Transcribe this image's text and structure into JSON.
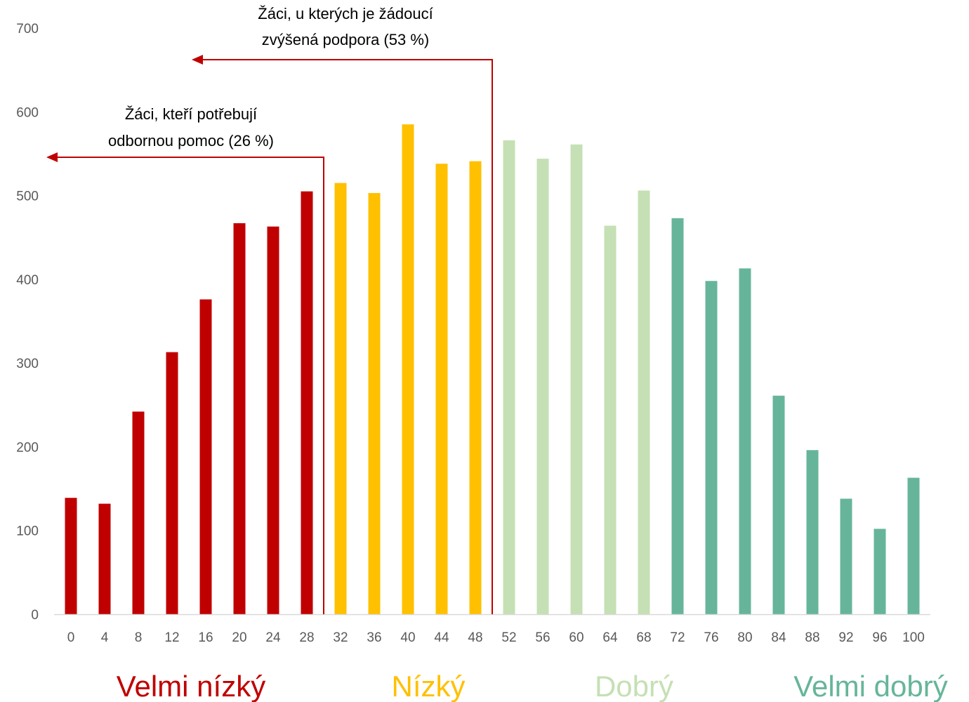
{
  "chart_data": {
    "type": "bar",
    "categories": [
      "0",
      "4",
      "8",
      "12",
      "16",
      "20",
      "24",
      "28",
      "32",
      "36",
      "40",
      "44",
      "48",
      "52",
      "56",
      "60",
      "64",
      "68",
      "72",
      "76",
      "80",
      "84",
      "88",
      "92",
      "96",
      "100"
    ],
    "values": [
      139,
      132,
      242,
      313,
      376,
      467,
      463,
      505,
      515,
      503,
      585,
      538,
      541,
      566,
      544,
      561,
      464,
      506,
      473,
      398,
      413,
      261,
      196,
      138,
      102,
      163
    ],
    "bar_groups": [
      0,
      0,
      0,
      0,
      0,
      0,
      0,
      0,
      1,
      1,
      1,
      1,
      1,
      2,
      2,
      2,
      2,
      2,
      3,
      3,
      3,
      3,
      3,
      3,
      3,
      3
    ],
    "ylim": [
      0,
      700
    ],
    "yticks": [
      "0",
      "100",
      "200",
      "300",
      "400",
      "500",
      "600",
      "700"
    ],
    "grid": false,
    "colors": {
      "velmi_nizky": "#C00000",
      "nizky": "#FFC000",
      "dobry": "#C5E0B4",
      "velmi_dobry": "#66B59A",
      "axis": "#D9D9D9",
      "annotation_line": "#C00000"
    },
    "annotations": [
      {
        "line1": "Žáci, u kterých je žádoucí",
        "line2": "zvýšená podpora (53 %)",
        "boundary_after_category": "48"
      },
      {
        "line1": "Žáci, kteří potřebují",
        "line2": "odbornou pomoc (26 %)",
        "boundary_after_category": "28"
      }
    ],
    "category_labels": [
      {
        "text": "Velmi nízký",
        "color": "#C00000"
      },
      {
        "text": "Nízký",
        "color": "#FFC000"
      },
      {
        "text": "Dobrý",
        "color": "#C5E0B4"
      },
      {
        "text": "Velmi dobrý",
        "color": "#66B59A"
      }
    ]
  }
}
